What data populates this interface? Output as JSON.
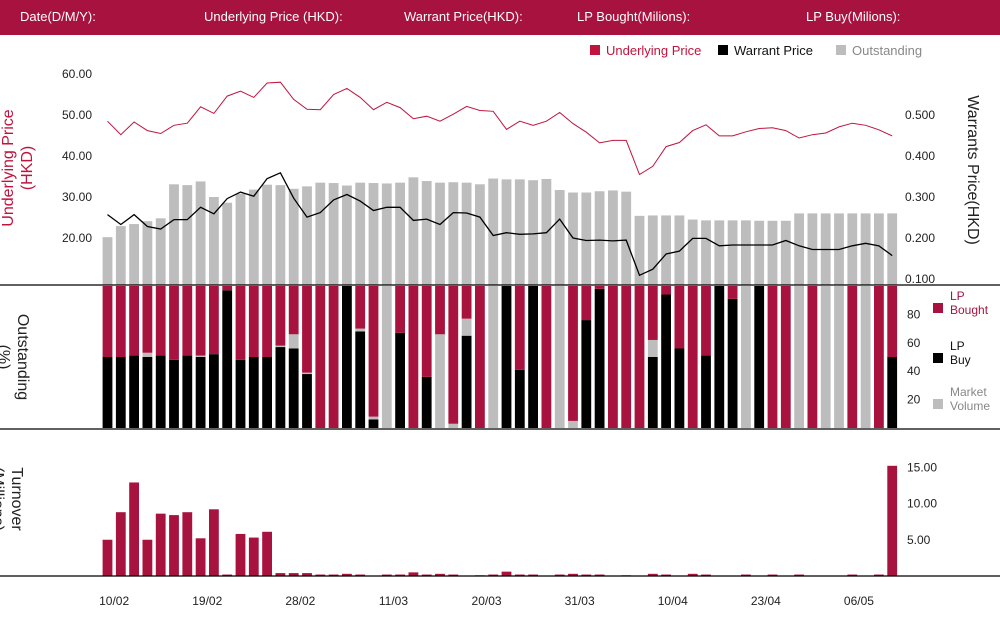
{
  "header": {
    "date_label": "Date(D/M/Y):",
    "underlying_label": "Underlying Price (HKD):",
    "warrant_label": "Warrant  Price(HKD):",
    "lp_bought_label": "LP Bought(Milions):",
    "lp_buy_label": "LP Buy(Milions):"
  },
  "colors": {
    "brand": "#a8123e",
    "underlying": "#c0143c",
    "warrant": "#000000",
    "outstanding": "#bdbdbd",
    "lp_bought": "#a8123e",
    "lp_buy": "#000000",
    "market_volume": "#bdbdbd",
    "turnover": "#a8123e"
  },
  "chart_data": [
    {
      "type": "line",
      "title": "",
      "legend_position": "top-right",
      "legend": [
        "Underlying Price",
        "Warrant  Price",
        "Outstanding"
      ],
      "ylabel_left": "Underlying Price (HKD)",
      "ylabel_right": "Warrants  Price(HKD)",
      "ylim_left": [
        0,
        62
      ],
      "yticks_left": [
        "60.00",
        "50.00",
        "40.00",
        "30.00",
        "20.00"
      ],
      "ylim_right": [
        0,
        0.52
      ],
      "yticks_right": [
        "0.500",
        "0.400",
        "0.300",
        "0.200",
        "0.100"
      ],
      "grid": false,
      "underlying": [
        48.5,
        45.2,
        48.3,
        46.2,
        45.5,
        47.5,
        48.0,
        52.0,
        50.4,
        54.6,
        55.8,
        54.3,
        57.8,
        58.0,
        53.8,
        51.4,
        51.3,
        55.0,
        56.5,
        54.3,
        51.3,
        53.1,
        51.8,
        49.1,
        49.7,
        48.5,
        50.2,
        52.1,
        51.1,
        50.9,
        46.5,
        48.5,
        47.5,
        48.5,
        50.6,
        47.9,
        45.8,
        43.2,
        43.8,
        43.8,
        35.5,
        37.5,
        42.3,
        43.3,
        46.2,
        47.6,
        44.9,
        44.9,
        45.9,
        46.7,
        46.9,
        46.2,
        44.4,
        45.2,
        45.6,
        47.1,
        48.0,
        47.5,
        46.4,
        44.9
      ],
      "warrant": [
        0.257,
        0.233,
        0.257,
        0.228,
        0.222,
        0.245,
        0.245,
        0.275,
        0.259,
        0.296,
        0.312,
        0.302,
        0.345,
        0.359,
        0.297,
        0.251,
        0.262,
        0.293,
        0.306,
        0.29,
        0.267,
        0.275,
        0.275,
        0.243,
        0.246,
        0.233,
        0.262,
        0.261,
        0.251,
        0.206,
        0.213,
        0.209,
        0.21,
        0.213,
        0.246,
        0.2,
        0.194,
        0.195,
        0.193,
        0.195,
        0.109,
        0.124,
        0.161,
        0.168,
        0.199,
        0.199,
        0.181,
        0.183,
        0.183,
        0.183,
        0.183,
        0.194,
        0.181,
        0.172,
        0.172,
        0.172,
        0.181,
        0.187,
        0.181,
        0.157
      ],
      "outstanding": [
        20.2,
        22.9,
        23.4,
        24.1,
        24.8,
        33.1,
        32.9,
        33.8,
        30.0,
        28.6,
        30.8,
        31.8,
        33.0,
        32.9,
        32.0,
        32.6,
        33.5,
        33.4,
        32.8,
        33.5,
        33.4,
        33.3,
        33.5,
        34.8,
        33.9,
        33.5,
        33.6,
        33.5,
        33.1,
        34.5,
        34.3,
        34.3,
        34.1,
        34.4,
        31.7,
        31.1,
        31.1,
        31.4,
        31.6,
        31.3,
        25.4,
        25.5,
        25.5,
        25.5,
        24.5,
        24.3,
        24.3,
        24.3,
        24.3,
        24.2,
        24.2,
        24.2,
        26.0,
        26.0,
        26.0,
        26.0,
        26.0,
        26.0,
        26.0,
        26.0
      ]
    },
    {
      "type": "bar",
      "title": "",
      "ylabel": "Outstanding (%)",
      "ylim": [
        0,
        100
      ],
      "yticks": [
        "80",
        "60",
        "40",
        "20"
      ],
      "legend_position": "right",
      "legend": [
        "LP Bought",
        "LP Buy",
        "Market Volume"
      ],
      "segments_black_grey_red": [
        [
          50,
          0,
          50
        ],
        [
          50,
          0,
          50
        ],
        [
          51,
          0,
          49
        ],
        [
          50,
          3,
          47
        ],
        [
          51,
          0,
          49
        ],
        [
          48,
          0,
          52
        ],
        [
          51,
          0,
          49
        ],
        [
          50,
          1,
          49
        ],
        [
          52,
          0,
          48
        ],
        [
          97,
          0,
          3
        ],
        [
          48,
          0,
          52
        ],
        [
          50,
          0,
          50
        ],
        [
          50,
          0,
          50
        ],
        [
          57,
          1,
          42
        ],
        [
          56,
          10,
          34
        ],
        [
          38,
          1,
          61
        ],
        [
          0,
          0,
          100
        ],
        [
          0,
          0,
          100
        ],
        [
          100,
          0,
          0
        ],
        [
          68,
          2,
          30
        ],
        [
          6,
          2,
          92
        ],
        [
          0,
          100,
          0
        ],
        [
          67,
          0,
          33
        ],
        [
          0,
          0,
          100
        ],
        [
          36,
          0,
          64
        ],
        [
          0,
          66,
          34
        ],
        [
          0,
          3,
          97
        ],
        [
          65,
          12,
          23
        ],
        [
          0,
          0,
          100
        ],
        [
          0,
          100,
          0
        ],
        [
          100,
          0,
          0
        ],
        [
          41,
          0,
          59
        ],
        [
          100,
          0,
          0
        ],
        [
          0,
          0,
          100
        ],
        [
          0,
          100,
          0
        ],
        [
          0,
          5,
          95
        ],
        [
          76,
          0,
          24
        ],
        [
          98,
          0,
          2
        ],
        [
          0,
          0,
          100
        ],
        [
          0,
          0,
          100
        ],
        [
          0,
          0,
          100
        ],
        [
          50,
          12,
          38
        ],
        [
          94,
          0,
          6
        ],
        [
          56,
          0,
          44
        ],
        [
          0,
          0,
          100
        ],
        [
          51,
          0,
          49
        ],
        [
          100,
          0,
          0
        ],
        [
          91,
          0,
          9
        ],
        [
          0,
          100,
          0
        ],
        [
          100,
          0,
          0
        ],
        [
          0,
          0,
          100
        ],
        [
          0,
          0,
          100
        ],
        [
          0,
          100,
          0
        ],
        [
          0,
          0,
          100
        ],
        [
          0,
          100,
          0
        ],
        [
          0,
          100,
          0
        ],
        [
          0,
          0,
          100
        ],
        [
          0,
          100,
          0
        ],
        [
          0,
          0,
          100
        ],
        [
          50,
          0,
          50
        ]
      ]
    },
    {
      "type": "bar",
      "title": "",
      "ylabel": "Turnover (Millions)",
      "ylim": [
        0,
        15.5
      ],
      "yticks": [
        "15.00",
        "10.00",
        "5.00"
      ],
      "xticks": [
        "10/02",
        "19/02",
        "28/02",
        "11/03",
        "20/03",
        "31/03",
        "10/04",
        "23/04",
        "06/05"
      ],
      "xtick_positions": [
        0.5,
        7.5,
        14.5,
        21.5,
        28.5,
        35.5,
        42.5,
        49.5,
        56.5
      ],
      "values": [
        5.0,
        8.8,
        12.9,
        5.0,
        8.6,
        8.4,
        8.8,
        5.2,
        9.2,
        0.2,
        5.8,
        5.3,
        6.1,
        0.4,
        0.4,
        0.4,
        0.2,
        0.2,
        0.3,
        0.2,
        0,
        0.2,
        0.2,
        0.5,
        0.2,
        0.3,
        0.2,
        0,
        0.1,
        0.2,
        0.6,
        0.2,
        0.2,
        0,
        0.2,
        0.3,
        0.2,
        0.2,
        0,
        0.1,
        0,
        0.3,
        0.2,
        0,
        0.3,
        0.2,
        0,
        0,
        0.2,
        0,
        0.2,
        0,
        0.2,
        0,
        0,
        0,
        0.2,
        0,
        0.2,
        15.2
      ]
    }
  ]
}
